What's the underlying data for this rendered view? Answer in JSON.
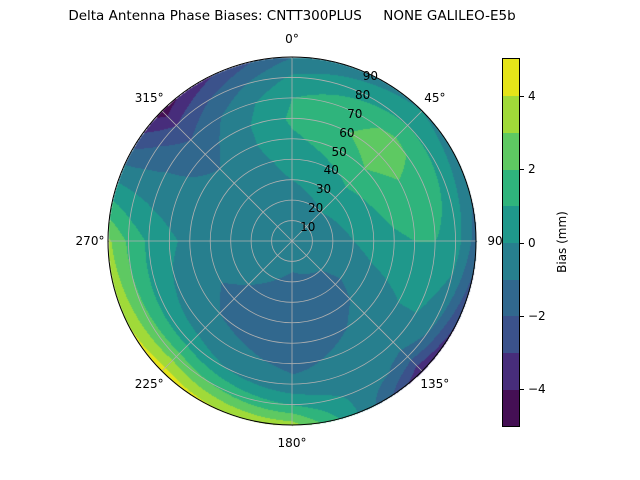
{
  "chart_data": {
    "type": "heatmap",
    "subtype": "polar-filled-contour",
    "title": "Delta Antenna Phase Biases: CNTT300PLUS     NONE GALILEO-E5b",
    "angle_tick_labels": [
      "0°",
      "45°",
      "90°",
      "135°",
      "180°",
      "225°",
      "270°",
      "315°"
    ],
    "radial_tick_labels": [
      "10",
      "20",
      "30",
      "40",
      "50",
      "60",
      "70",
      "80",
      "90"
    ],
    "radial_range": [
      0,
      90
    ],
    "angular_direction": "clockwise from top",
    "grid": true,
    "colorbar": {
      "label": "Bias (mm)",
      "range": [
        -5,
        5
      ],
      "levels": [
        -5,
        -4,
        -3,
        -2,
        -1,
        0,
        1,
        2,
        3,
        4,
        5
      ],
      "tick_labels": [
        "−4",
        "−2",
        "0",
        "2",
        "4"
      ],
      "tick_values": [
        -4,
        -2,
        0,
        2,
        4
      ],
      "colors": [
        "#440f54",
        "#472d7b",
        "#3b528b",
        "#31688e",
        "#277f8e",
        "#1f988b",
        "#2fb47c",
        "#5ec962",
        "#a0da39",
        "#e5e419"
      ]
    },
    "azimuths": [
      0,
      45,
      90,
      135,
      180,
      225,
      270,
      315
    ],
    "zeniths": [
      0,
      10,
      20,
      30,
      40,
      50,
      60,
      70,
      80,
      90
    ],
    "values": [
      [
        -0.5,
        -0.5,
        -0.5,
        -0.5,
        -0.5,
        -0.5,
        -0.5,
        -0.5
      ],
      [
        -0.5,
        -0.4,
        -0.5,
        -0.7,
        -0.8,
        -0.6,
        -0.5,
        -0.5
      ],
      [
        -0.3,
        0,
        -0.3,
        -1,
        -1.2,
        -0.8,
        -0.5,
        -0.5
      ],
      [
        0,
        0.5,
        0,
        -1.2,
        -1.5,
        -1,
        -0.5,
        -0.5
      ],
      [
        0.3,
        1.2,
        0.5,
        -1,
        -1.5,
        -1.2,
        -0.6,
        -0.7
      ],
      [
        0.8,
        2,
        0.8,
        -0.8,
        -1.5,
        -1,
        -0.3,
        -1
      ],
      [
        1.2,
        2.5,
        1,
        -0.5,
        -1.2,
        -0.5,
        0.2,
        -1.5
      ],
      [
        1,
        2.2,
        1,
        -0.5,
        -0.8,
        0.5,
        0.8,
        -2
      ],
      [
        0.2,
        1,
        0.5,
        -1.5,
        1,
        2.5,
        1.8,
        -3
      ],
      [
        -1,
        0,
        -1.5,
        -4,
        3.5,
        4.5,
        3.2,
        -4.5
      ]
    ]
  }
}
